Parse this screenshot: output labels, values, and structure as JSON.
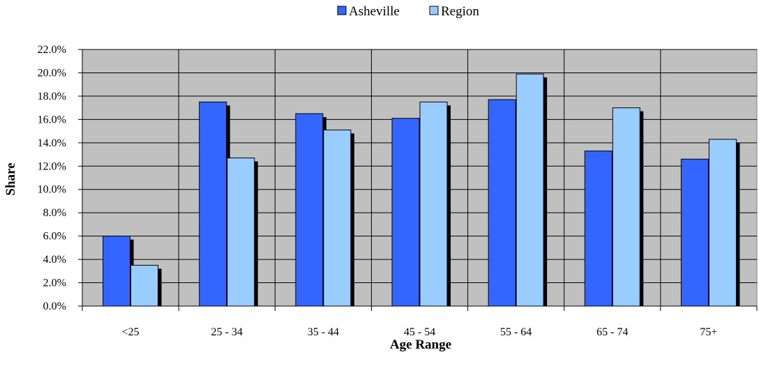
{
  "chart_data": {
    "type": "bar",
    "categories": [
      "<25",
      "25 - 34",
      "35 - 44",
      "45 - 54",
      "55 - 64",
      "65 - 74",
      "75+"
    ],
    "series": [
      {
        "name": "Asheville",
        "values": [
          6.0,
          17.5,
          16.5,
          16.1,
          17.7,
          13.3,
          12.6
        ],
        "color": "#3366ff"
      },
      {
        "name": "Region",
        "values": [
          3.5,
          12.7,
          15.1,
          17.5,
          19.9,
          17.0,
          14.3
        ],
        "color": "#99ccff"
      }
    ],
    "xlabel": "Age Range",
    "ylabel": "Share",
    "ylim": [
      0,
      22
    ],
    "ytick_step": 2,
    "ytick_format": "percent_1dp",
    "plot_background": "#c0c0c0",
    "grid": true,
    "legend_position": "top-center"
  }
}
